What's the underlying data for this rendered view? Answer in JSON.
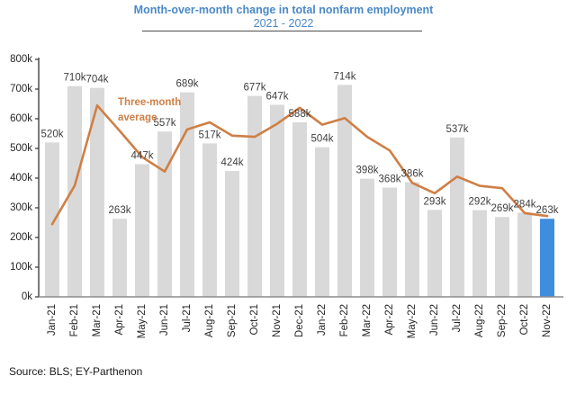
{
  "header": {
    "title": "Month-over-month change in total nonfarm employment",
    "subtitle": "2021 - 2022",
    "title_color": "#4a89c8"
  },
  "footer": {
    "source": "Source: BLS; EY-Parthenon"
  },
  "chart_data": {
    "type": "bar",
    "title": "Month-over-month change in total nonfarm employment",
    "subtitle": "2021 - 2022",
    "categories": [
      "Jan-21",
      "Feb-21",
      "Mar-21",
      "Apr-21",
      "May-21",
      "Jun-21",
      "Jul-21",
      "Aug-21",
      "Sep-21",
      "Oct-21",
      "Nov-21",
      "Dec-21",
      "Jan-22",
      "Feb-22",
      "Mar-22",
      "Apr-22",
      "May-22",
      "Jun-22",
      "Jul-22",
      "Aug-22",
      "Sep-22",
      "Oct-22",
      "Nov-22"
    ],
    "values": [
      520,
      710,
      704,
      263,
      447,
      557,
      689,
      517,
      424,
      677,
      647,
      588,
      504,
      714,
      398,
      368,
      386,
      293,
      537,
      292,
      269,
      284,
      263
    ],
    "value_labels": [
      "520k",
      "710k",
      "704k",
      "263k",
      "447k",
      "557k",
      "689k",
      "517k",
      "424k",
      "677k",
      "647k",
      "588k",
      "504k",
      "714k",
      "398k",
      "368k",
      "386k",
      "293k",
      "537k",
      "292k",
      "269k",
      "284k",
      "263k"
    ],
    "line_series": {
      "name": "Three-month average",
      "values": [
        245,
        375,
        645,
        559,
        471,
        422,
        564,
        588,
        543,
        539,
        583,
        637,
        580,
        602,
        539,
        493,
        384,
        349,
        405,
        374,
        366,
        282,
        272
      ]
    },
    "annotation": {
      "line1": "Three-month",
      "line2": "average"
    },
    "ylim": [
      0,
      800
    ],
    "ytick_step": 100,
    "ytick_labels": [
      "0k",
      "100k",
      "200k",
      "300k",
      "400k",
      "500k",
      "600k",
      "700k",
      "800k"
    ],
    "grid": false,
    "legend_position": "none",
    "highlight_index": 22,
    "colors": {
      "bar": "#d9d9d9",
      "highlight_bar": "#3e8ee0",
      "line": "#cf7f45",
      "bar_label": "#3f3f3f",
      "axis": "#333333",
      "baseline": "#8c8c8c",
      "tick_label": "#262626"
    }
  }
}
